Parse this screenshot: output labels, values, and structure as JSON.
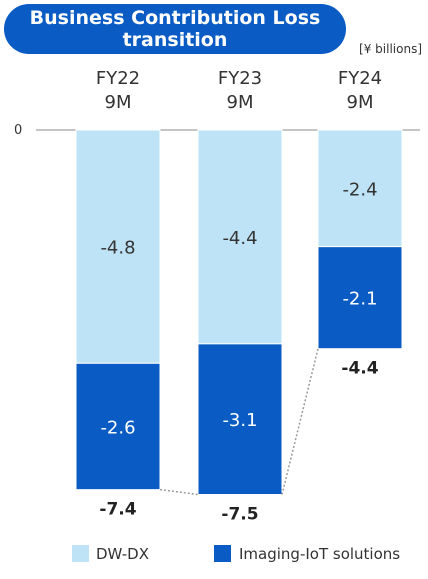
{
  "chart_data": {
    "type": "bar",
    "stacked": true,
    "title": "Business Contribution Loss transition",
    "title_lines": [
      "Business Contribution Loss",
      "transition"
    ],
    "unit": "[¥ billions]",
    "categories": [
      [
        "FY22",
        "9M"
      ],
      [
        "FY23",
        "9M"
      ],
      [
        "FY24",
        "9M"
      ]
    ],
    "zero_label": "0",
    "ylim": [
      -7.8,
      0
    ],
    "series": [
      {
        "name": "DW-DX",
        "color": "#bfe3f6",
        "label_color": "#333333",
        "values": [
          -4.8,
          -4.4,
          -2.4
        ]
      },
      {
        "name": "Imaging-IoT solutions",
        "color": "#0a5cc4",
        "label_color": "#ffffff",
        "values": [
          -2.6,
          -3.1,
          -2.1
        ]
      }
    ],
    "totals": [
      -7.4,
      -7.5,
      -4.4
    ],
    "connector_color": "#9a9a9a"
  }
}
